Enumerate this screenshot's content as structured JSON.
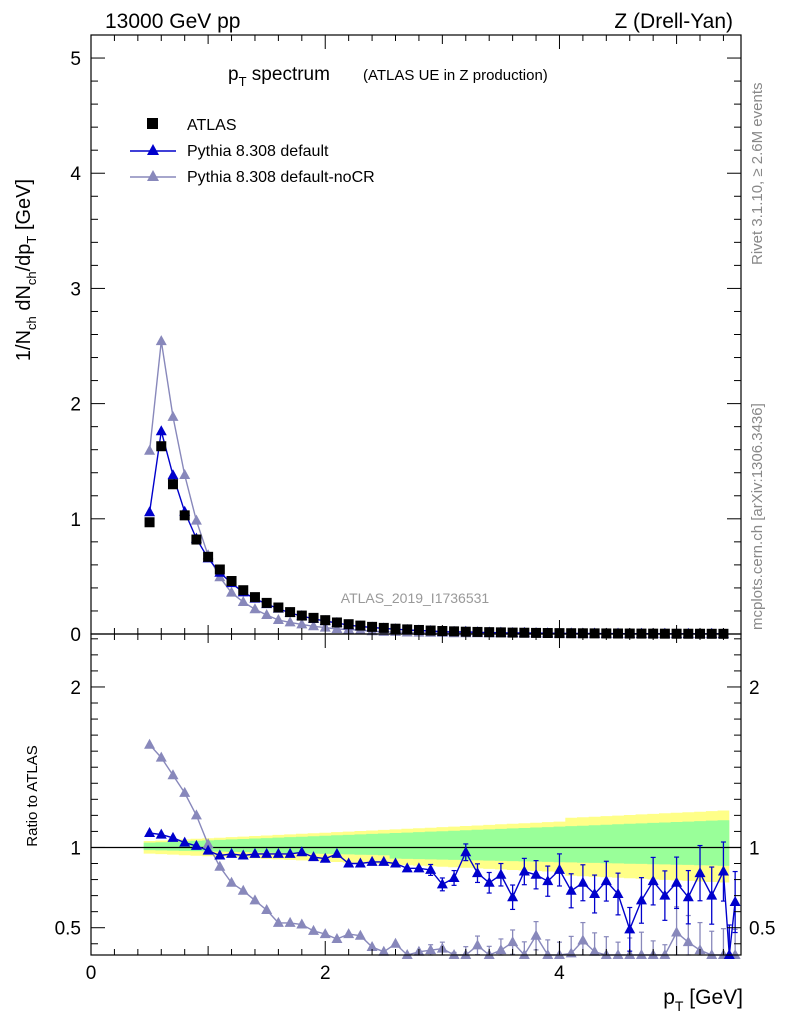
{
  "header": {
    "energy_label": "13000 GeV pp",
    "process_label": "Z (Drell-Yan)"
  },
  "side_labels": {
    "rivet": "Rivet 3.1.10, ≥ 2.6M events",
    "mcplots": "mcplots.cern.ch [arXiv:1306.3436]"
  },
  "main_plot": {
    "title_main": "p",
    "title_sub": "T",
    "title_word": " spectrum",
    "title_note": "(ATLAS UE in Z production)",
    "ylabel_parts": [
      "1/N",
      "ch",
      " dN",
      "ch",
      "/dp",
      "T",
      " [GeV]"
    ],
    "watermark": "ATLAS_2019_I1736531"
  },
  "ratio_plot": {
    "ylabel": "Ratio to ATLAS"
  },
  "xlabel": {
    "main": "p",
    "sub": "T",
    "unit": " [GeV]"
  },
  "legend": {
    "atlas": "ATLAS",
    "default": "Pythia 8.308 default",
    "nocr": "Pythia 8.308 default-noCR"
  },
  "colors": {
    "data": "#000000",
    "default": "#0000cc",
    "nocr": "#8888bb",
    "band_outer": "#ffff88",
    "band_inner": "#99ff99",
    "side_text": "#888888"
  },
  "chart_data": {
    "type": "scatter",
    "title": "pT spectrum (ATLAS UE in Z production)",
    "xlabel": "pT [GeV]",
    "ylabel": "1/Nch dNch/dpT [GeV]",
    "xlim": [
      0,
      5.55
    ],
    "ylim": [
      0,
      5.2
    ],
    "ratio_ylim": [
      0.33,
      2.33
    ],
    "x_ticks": [
      0,
      2,
      4
    ],
    "y_ticks": [
      0,
      1,
      2,
      3,
      4,
      5
    ],
    "ratio_ticks": [
      0.5,
      1,
      2
    ],
    "x": [
      0.5,
      0.6,
      0.7,
      0.8,
      0.9,
      1.0,
      1.1,
      1.2,
      1.3,
      1.4,
      1.5,
      1.6,
      1.7,
      1.8,
      1.9,
      2.0,
      2.1,
      2.2,
      2.3,
      2.4,
      2.5,
      2.6,
      2.7,
      2.8,
      2.9,
      3.0,
      3.1,
      3.2,
      3.3,
      3.4,
      3.5,
      3.6,
      3.7,
      3.8,
      3.9,
      4.0,
      4.1,
      4.2,
      4.3,
      4.4,
      4.5,
      4.6,
      4.7,
      4.8,
      4.9,
      5.0,
      5.1,
      5.2,
      5.3,
      5.4
    ],
    "series": [
      {
        "name": "ATLAS",
        "values": [
          0.97,
          1.63,
          1.3,
          1.03,
          0.82,
          0.67,
          0.56,
          0.46,
          0.38,
          0.32,
          0.27,
          0.23,
          0.19,
          0.16,
          0.14,
          0.12,
          0.1,
          0.085,
          0.073,
          0.062,
          0.053,
          0.046,
          0.04,
          0.035,
          0.03,
          0.026,
          0.023,
          0.02,
          0.018,
          0.016,
          0.014,
          0.012,
          0.011,
          0.0095,
          0.0085,
          0.0075,
          0.0067,
          0.006,
          0.0054,
          0.0048,
          0.0043,
          0.0039,
          0.0035,
          0.0031,
          0.0028,
          0.0025,
          0.0023,
          0.0021,
          0.0019,
          0.0017
        ]
      },
      {
        "name": "Pythia 8.308 default",
        "ratio": [
          1.09,
          1.08,
          1.06,
          1.03,
          1.01,
          0.98,
          0.95,
          0.96,
          0.95,
          0.96,
          0.96,
          0.96,
          0.96,
          0.97,
          0.94,
          0.93,
          0.96,
          0.9,
          0.9,
          0.91,
          0.91,
          0.9,
          0.87,
          0.87,
          0.86,
          0.77,
          0.81,
          0.97,
          0.84,
          0.78,
          0.83,
          0.69,
          0.85,
          0.83,
          0.79,
          0.86,
          0.73,
          0.78,
          0.71,
          0.79,
          0.71,
          0.49,
          0.67,
          0.79,
          0.7,
          0.78,
          0.69,
          0.84,
          0.7,
          0.85,
          0.33,
          0.66
        ],
        "ratio_x": [
          0.5,
          0.6,
          0.7,
          0.8,
          0.9,
          1.0,
          1.1,
          1.2,
          1.3,
          1.4,
          1.5,
          1.6,
          1.7,
          1.8,
          1.9,
          2.0,
          2.1,
          2.2,
          2.3,
          2.4,
          2.5,
          2.6,
          2.7,
          2.8,
          2.9,
          3.0,
          3.1,
          3.2,
          3.3,
          3.4,
          3.5,
          3.6,
          3.7,
          3.8,
          3.9,
          4.0,
          4.1,
          4.2,
          4.3,
          4.4,
          4.5,
          4.6,
          4.7,
          4.8,
          4.9,
          5.0,
          5.1,
          5.2,
          5.3,
          5.4,
          5.45,
          5.5
        ]
      },
      {
        "name": "Pythia 8.308 default-noCR",
        "ratio": [
          1.64,
          1.56,
          1.45,
          1.34,
          1.2,
          1.02,
          0.88,
          0.78,
          0.73,
          0.67,
          0.61,
          0.53,
          0.53,
          0.52,
          0.48,
          0.46,
          0.43,
          0.46,
          0.45,
          0.38,
          0.35,
          0.4,
          0.33,
          0.35,
          0.36,
          0.37,
          0.3,
          0.33,
          0.39,
          0.32,
          0.36,
          0.41,
          0.33,
          0.45,
          0.33,
          0.31,
          0.34,
          0.42,
          0.35,
          0.32,
          0.28,
          0.3,
          0.33,
          0.27,
          0.24,
          0.47,
          0.41,
          0.36,
          0.3,
          0.31,
          0.3
        ],
        "ratio_x": [
          0.5,
          0.6,
          0.7,
          0.8,
          0.9,
          1.0,
          1.1,
          1.2,
          1.3,
          1.4,
          1.5,
          1.6,
          1.7,
          1.8,
          1.9,
          2.0,
          2.1,
          2.2,
          2.3,
          2.4,
          2.5,
          2.6,
          2.7,
          2.8,
          2.9,
          3.0,
          3.1,
          3.2,
          3.3,
          3.4,
          3.5,
          3.6,
          3.7,
          3.8,
          3.9,
          4.0,
          4.1,
          4.2,
          4.3,
          4.4,
          4.5,
          4.6,
          4.7,
          4.8,
          4.9,
          5.0,
          5.1,
          5.2,
          5.3,
          5.4,
          5.5
        ]
      }
    ]
  }
}
